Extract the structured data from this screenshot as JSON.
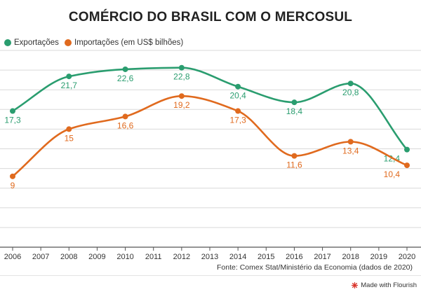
{
  "title": "COMÉRCIO DO BRASIL COM O MERCOSUL",
  "source": "Fonte: Comex Stat/Ministério da Economia (dados de 2020)",
  "credit": "Made with Flourish",
  "colors": {
    "exportacoes": "#2a9d6f",
    "importacoes": "#e06a1e",
    "grid": "#d9d9d9",
    "axis": "#555555",
    "credit_icon": "#d9342b"
  },
  "chart_data": {
    "type": "line",
    "title": "COMÉRCIO DO BRASIL COM O MERCOSUL",
    "x_ticks": [
      "2006",
      "2007",
      "2008",
      "2009",
      "2010",
      "2011",
      "2012",
      "2013",
      "2014",
      "2015",
      "2016",
      "2017",
      "2018",
      "2019",
      "2020"
    ],
    "ylim": [
      0,
      25
    ],
    "grid": true,
    "legend_position": "top-left",
    "series": [
      {
        "name": "Exportações",
        "color_key": "exportacoes",
        "x": [
          2006,
          2008,
          2010,
          2012,
          2014,
          2016,
          2018,
          2020
        ],
        "values": [
          17.3,
          21.7,
          22.6,
          22.8,
          20.4,
          18.4,
          20.8,
          12.4
        ],
        "labels": [
          "17,3",
          "21,7",
          "22,6",
          "22,8",
          "20,4",
          "18,4",
          "20,8",
          "12,4"
        ]
      },
      {
        "name": "Importações (em US$ bilhões)",
        "color_key": "importacoes",
        "x": [
          2006,
          2008,
          2010,
          2012,
          2014,
          2016,
          2018,
          2020
        ],
        "values": [
          9,
          15,
          16.6,
          19.2,
          17.3,
          11.6,
          13.4,
          10.4
        ],
        "labels": [
          "9",
          "15",
          "16,6",
          "19,2",
          "17,3",
          "11,6",
          "13,4",
          "10,4"
        ]
      }
    ]
  }
}
